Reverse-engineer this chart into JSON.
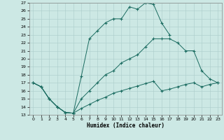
{
  "xlabel": "Humidex (Indice chaleur)",
  "xlim": [
    -0.5,
    23.5
  ],
  "ylim": [
    13,
    27
  ],
  "xticks": [
    0,
    1,
    2,
    3,
    4,
    5,
    6,
    7,
    8,
    9,
    10,
    11,
    12,
    13,
    14,
    15,
    16,
    17,
    18,
    19,
    20,
    21,
    22,
    23
  ],
  "yticks": [
    13,
    14,
    15,
    16,
    17,
    18,
    19,
    20,
    21,
    22,
    23,
    24,
    25,
    26,
    27
  ],
  "bg_color": "#cce8e4",
  "grid_color": "#aaccca",
  "line_color": "#1a6b60",
  "line1_x": [
    0,
    1,
    2,
    3,
    4,
    5,
    6,
    7,
    8,
    9,
    10,
    11,
    12,
    13,
    14,
    15,
    16,
    17,
    18,
    19,
    20,
    21,
    22,
    23
  ],
  "line1_y": [
    17,
    16.5,
    15,
    14,
    13.3,
    13.2,
    17.8,
    22.5,
    23.5,
    24.5,
    25.0,
    25.0,
    26.5,
    26.2,
    27.0,
    26.8,
    24.5,
    23.0,
    null,
    null,
    null,
    null,
    null,
    null
  ],
  "line2_x": [
    0,
    1,
    2,
    3,
    4,
    5,
    6,
    7,
    8,
    9,
    10,
    11,
    12,
    13,
    14,
    15,
    16,
    17,
    18,
    19,
    20,
    21,
    22,
    23
  ],
  "line2_y": [
    17,
    16.5,
    15,
    14,
    13.3,
    13.2,
    15.0,
    16.0,
    17.0,
    18.0,
    18.5,
    19.5,
    20.0,
    20.5,
    21.5,
    22.5,
    22.5,
    22.5,
    22.0,
    21.0,
    21.0,
    18.5,
    17.5,
    17.0
  ],
  "line3_x": [
    0,
    1,
    2,
    3,
    4,
    5,
    6,
    7,
    8,
    9,
    10,
    11,
    12,
    13,
    14,
    15,
    16,
    17,
    18,
    19,
    20,
    21,
    22,
    23
  ],
  "line3_y": [
    17,
    16.5,
    15,
    14,
    13.3,
    13.2,
    13.8,
    14.3,
    14.8,
    15.2,
    15.7,
    16.0,
    16.3,
    16.6,
    16.9,
    17.2,
    16.0,
    16.2,
    16.5,
    16.8,
    17.0,
    16.5,
    16.8,
    17.0
  ]
}
